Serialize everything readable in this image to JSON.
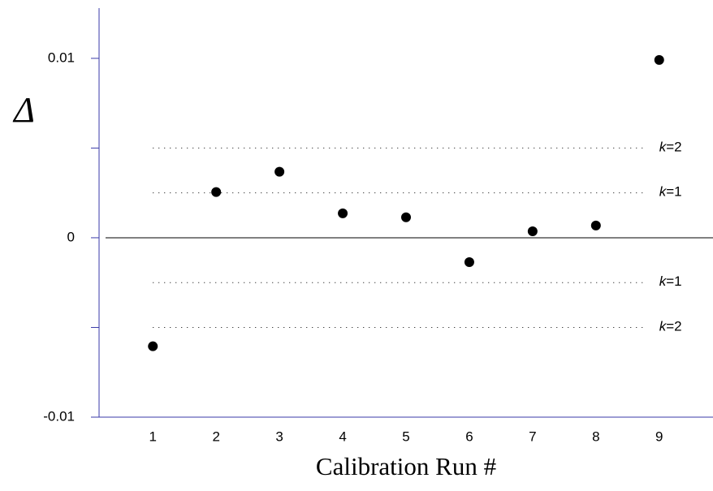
{
  "chart_data": {
    "type": "scatter",
    "x_label": "Calibration Run #",
    "y_label": "Δ",
    "categories": [
      "1",
      "2",
      "3",
      "4",
      "5",
      "6",
      "7",
      "8",
      "9"
    ],
    "values": [
      -0.00605,
      0.00255,
      0.00368,
      0.00136,
      0.00114,
      -0.00136,
      0.00036,
      0.00068,
      0.00991
    ],
    "color": "#000000",
    "xlim": [
      0.15,
      9.85
    ],
    "ylim": [
      -0.01,
      0.0128
    ],
    "yticks": [
      -0.01,
      0,
      0.01
    ],
    "minor_yticks": [
      -0.005,
      0.005
    ],
    "zero_line": true,
    "reference_lines": [
      {
        "value": 0.005,
        "label": "k=2"
      },
      {
        "value": 0.0025,
        "label": "k=1"
      },
      {
        "value": -0.0025,
        "label": "k=1"
      },
      {
        "value": -0.005,
        "label": "k=2"
      }
    ]
  }
}
